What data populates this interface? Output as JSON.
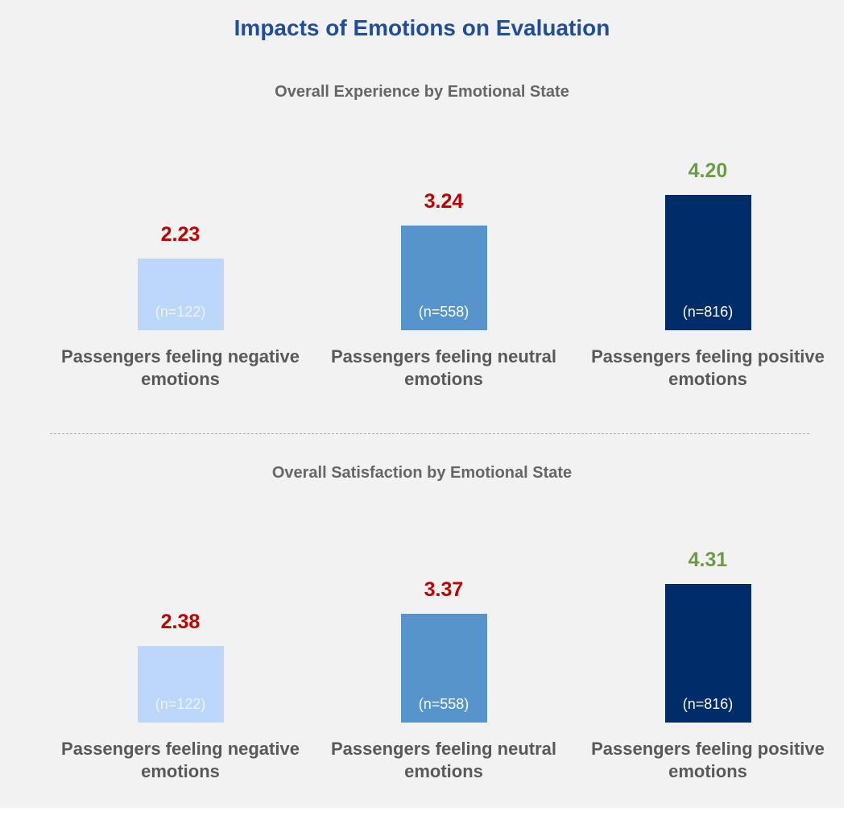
{
  "title": "Impacts of Emotions on Evaluation",
  "chart_data": [
    {
      "type": "bar",
      "title": "Overall Experience by Emotional State",
      "categories": [
        "Passengers feeling negative emotions",
        "Passengers feeling neutral emotions",
        "Passengers feeling positive emotions"
      ],
      "values": [
        2.23,
        3.24,
        4.2
      ],
      "value_labels": [
        "2.23",
        "3.24",
        "4.20"
      ],
      "annotations": [
        "(n=122)",
        "(n=558)",
        "(n=816)"
      ],
      "colors": [
        "#bdd7fb",
        "#5794cc",
        "#002d6a"
      ],
      "label_colors": [
        "#c00000",
        "#c00000",
        "#6a9e3f"
      ],
      "ylim": [
        0,
        5
      ]
    },
    {
      "type": "bar",
      "title": "Overall Satisfaction by Emotional State",
      "categories": [
        "Passengers feeling negative emotions",
        "Passengers feeling neutral emotions",
        "Passengers feeling positive emotions"
      ],
      "values": [
        2.38,
        3.37,
        4.31
      ],
      "value_labels": [
        "2.38",
        "3.37",
        "4.31"
      ],
      "annotations": [
        "(n=122)",
        "(n=558)",
        "(n=816)"
      ],
      "colors": [
        "#bdd7fb",
        "#5794cc",
        "#002d6a"
      ],
      "label_colors": [
        "#c00000",
        "#c00000",
        "#6a9e3f"
      ],
      "ylim": [
        0,
        5
      ]
    }
  ]
}
